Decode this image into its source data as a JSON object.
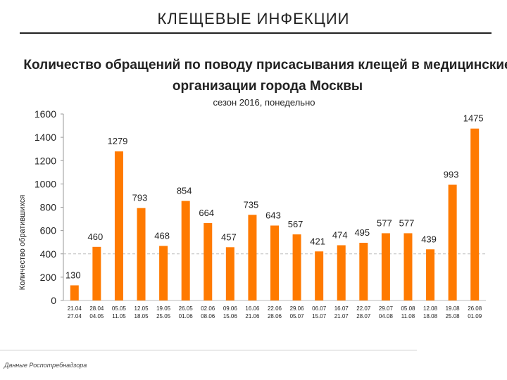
{
  "slide": {
    "title": "КЛЕЩЕВЫЕ ИНФЕКЦИИ",
    "footnote": "Данные Роспотребнадзора"
  },
  "chart_data": {
    "type": "bar",
    "title": "Количество обращений по поводу присасывания клещей в медицинские организации города Москвы",
    "subtitle": "сезон 2016, понедельно",
    "xlabel": "",
    "ylabel": "Количество обратившихся",
    "ylim": [
      0,
      1600
    ],
    "yticks": [
      0,
      200,
      400,
      600,
      800,
      1000,
      1200,
      1400,
      1600
    ],
    "grid": false,
    "reference_line": 400,
    "bar_color": "#FF7A00",
    "categories": [
      [
        "21.04",
        "27.04"
      ],
      [
        "28.04",
        "04.05"
      ],
      [
        "05.05",
        "11.05"
      ],
      [
        "12.05",
        "18.05"
      ],
      [
        "19.05",
        "25.05"
      ],
      [
        "26.05",
        "01.06"
      ],
      [
        "02.06",
        "08.06"
      ],
      [
        "09.06",
        "15.06"
      ],
      [
        "16.06",
        "21.06"
      ],
      [
        "22.06",
        "28.06"
      ],
      [
        "29.06",
        "05.07"
      ],
      [
        "06.07",
        "15.07"
      ],
      [
        "16.07",
        "21.07"
      ],
      [
        "22.07",
        "28.07"
      ],
      [
        "29.07",
        "04.08"
      ],
      [
        "05.08",
        "11.08"
      ],
      [
        "12.08",
        "18.08"
      ],
      [
        "19.08",
        "25.08"
      ],
      [
        "26.08",
        "01.09"
      ]
    ],
    "values": [
      130,
      460,
      1279,
      793,
      468,
      854,
      664,
      457,
      735,
      643,
      567,
      421,
      474,
      495,
      577,
      577,
      439,
      993,
      1475
    ]
  }
}
